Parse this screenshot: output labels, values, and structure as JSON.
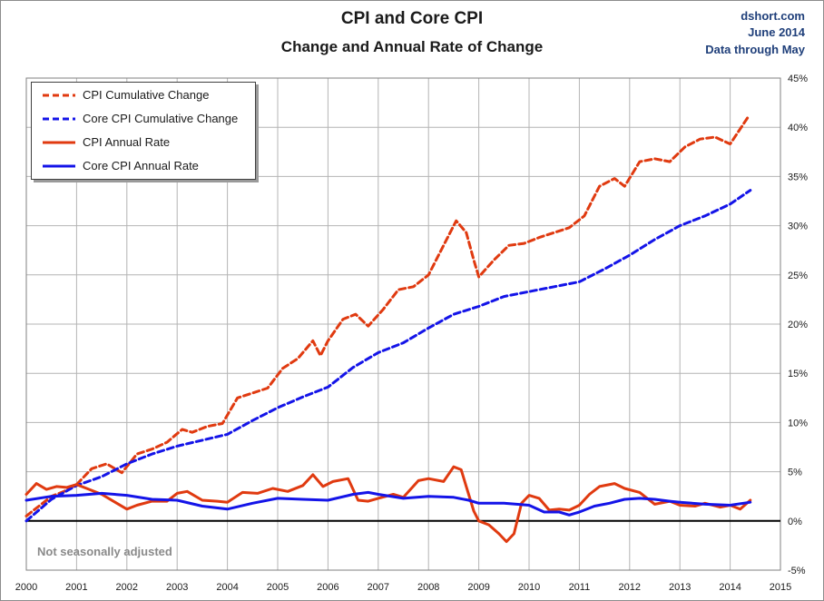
{
  "header": {
    "title": "CPI and Core CPI",
    "subtitle": "Change and Annual Rate of Change",
    "source": "dshort.com",
    "date": "June 2014",
    "data_through": "Data through May"
  },
  "note": "Not seasonally adjusted",
  "colors": {
    "cpi": "#e03a10",
    "core": "#1414e8",
    "grid": "#b4b4b4",
    "zero": "#000000"
  },
  "chart_data": {
    "type": "line",
    "title": "CPI and Core CPI",
    "subtitle": "Change and Annual Rate of Change",
    "xlabel": "",
    "ylabel": "",
    "xlim": [
      2000,
      2015
    ],
    "ylim": [
      -5,
      45
    ],
    "x_ticks": [
      "2000",
      "2001",
      "2002",
      "2003",
      "2004",
      "2005",
      "2006",
      "2007",
      "2008",
      "2009",
      "2010",
      "2011",
      "2012",
      "2013",
      "2014",
      "2015"
    ],
    "y_ticks": [
      "-5%",
      "0%",
      "5%",
      "10%",
      "15%",
      "20%",
      "25%",
      "30%",
      "35%",
      "40%",
      "45%"
    ],
    "y_tick_values": [
      -5,
      0,
      5,
      10,
      15,
      20,
      25,
      30,
      35,
      40,
      45
    ],
    "grid": true,
    "legend_position": "top-left",
    "series": [
      {
        "name": "CPI Cumulative Change",
        "style": "dashed",
        "x": [
          2000.0,
          2000.25,
          2000.5,
          2000.75,
          2001.0,
          2001.3,
          2001.6,
          2001.9,
          2002.2,
          2002.5,
          2002.8,
          2003.1,
          2003.3,
          2003.6,
          2003.9,
          2004.2,
          2004.5,
          2004.8,
          2005.1,
          2005.4,
          2005.7,
          2005.85,
          2006.0,
          2006.3,
          2006.55,
          2006.8,
          2007.1,
          2007.4,
          2007.7,
          2008.0,
          2008.3,
          2008.55,
          2008.75,
          2008.9,
          2009.0,
          2009.3,
          2009.6,
          2009.9,
          2010.2,
          2010.5,
          2010.8,
          2011.1,
          2011.4,
          2011.7,
          2011.9,
          2012.2,
          2012.5,
          2012.8,
          2013.1,
          2013.4,
          2013.7,
          2014.0,
          2014.35
        ],
        "values": [
          0.5,
          1.5,
          2.5,
          3.0,
          3.7,
          5.3,
          5.8,
          4.9,
          6.8,
          7.3,
          8.0,
          9.3,
          9.0,
          9.6,
          9.9,
          12.5,
          13.0,
          13.5,
          15.5,
          16.5,
          18.3,
          16.8,
          18.3,
          20.5,
          21.0,
          19.8,
          21.5,
          23.5,
          23.8,
          25.0,
          28.0,
          30.5,
          29.3,
          26.5,
          24.8,
          26.5,
          28.0,
          28.2,
          28.8,
          29.3,
          29.8,
          31.0,
          34.0,
          34.8,
          34.0,
          36.5,
          36.8,
          36.5,
          38.0,
          38.8,
          39.0,
          38.3,
          41.0
        ]
      },
      {
        "name": "Core CPI Cumulative Change",
        "style": "dashed",
        "x": [
          2000.0,
          2000.5,
          2001.0,
          2001.5,
          2002.0,
          2002.5,
          2003.0,
          2003.5,
          2004.0,
          2004.5,
          2005.0,
          2005.5,
          2006.0,
          2006.5,
          2007.0,
          2007.5,
          2008.0,
          2008.5,
          2009.0,
          2009.5,
          2010.0,
          2010.5,
          2011.0,
          2011.5,
          2012.0,
          2012.5,
          2013.0,
          2013.5,
          2014.0,
          2014.4
        ],
        "values": [
          0.0,
          2.2,
          3.6,
          4.5,
          5.8,
          6.8,
          7.6,
          8.2,
          8.8,
          10.2,
          11.5,
          12.6,
          13.6,
          15.6,
          17.1,
          18.1,
          19.6,
          21.0,
          21.8,
          22.8,
          23.3,
          23.8,
          24.3,
          25.6,
          27.0,
          28.6,
          30.0,
          31.0,
          32.2,
          33.6
        ]
      },
      {
        "name": "CPI Annual Rate",
        "style": "solid",
        "x": [
          2000.0,
          2000.2,
          2000.4,
          2000.6,
          2000.8,
          2001.0,
          2001.2,
          2001.5,
          2001.8,
          2002.0,
          2002.2,
          2002.5,
          2002.8,
          2003.0,
          2003.2,
          2003.5,
          2003.8,
          2004.0,
          2004.3,
          2004.6,
          2004.9,
          2005.2,
          2005.5,
          2005.7,
          2005.9,
          2006.1,
          2006.4,
          2006.6,
          2006.8,
          2007.0,
          2007.3,
          2007.5,
          2007.8,
          2008.0,
          2008.3,
          2008.5,
          2008.65,
          2008.75,
          2008.9,
          2009.0,
          2009.2,
          2009.4,
          2009.55,
          2009.7,
          2009.85,
          2010.0,
          2010.2,
          2010.4,
          2010.6,
          2010.8,
          2011.0,
          2011.2,
          2011.4,
          2011.7,
          2011.9,
          2012.2,
          2012.5,
          2012.8,
          2013.0,
          2013.3,
          2013.5,
          2013.8,
          2014.0,
          2014.2,
          2014.4
        ],
        "values": [
          2.7,
          3.8,
          3.2,
          3.5,
          3.4,
          3.7,
          3.3,
          2.7,
          1.8,
          1.2,
          1.6,
          2.0,
          2.0,
          2.8,
          3.0,
          2.1,
          2.0,
          1.9,
          2.9,
          2.8,
          3.3,
          3.0,
          3.6,
          4.7,
          3.5,
          4.0,
          4.3,
          2.1,
          2.0,
          2.3,
          2.7,
          2.4,
          4.1,
          4.3,
          4.0,
          5.5,
          5.2,
          3.5,
          1.0,
          0.0,
          -0.4,
          -1.3,
          -2.1,
          -1.3,
          1.8,
          2.6,
          2.3,
          1.1,
          1.2,
          1.1,
          1.6,
          2.7,
          3.5,
          3.8,
          3.3,
          2.9,
          1.7,
          2.0,
          1.6,
          1.5,
          1.8,
          1.4,
          1.6,
          1.2,
          2.1
        ]
      },
      {
        "name": "Core CPI Annual Rate",
        "style": "solid",
        "x": [
          2000.0,
          2000.5,
          2001.0,
          2001.5,
          2002.0,
          2002.5,
          2003.0,
          2003.5,
          2004.0,
          2004.5,
          2005.0,
          2005.5,
          2006.0,
          2006.5,
          2006.8,
          2007.0,
          2007.5,
          2008.0,
          2008.5,
          2008.8,
          2009.0,
          2009.5,
          2010.0,
          2010.3,
          2010.6,
          2010.8,
          2011.0,
          2011.3,
          2011.6,
          2011.9,
          2012.2,
          2012.5,
          2012.8,
          2013.0,
          2013.5,
          2014.0,
          2014.4
        ],
        "values": [
          2.1,
          2.5,
          2.6,
          2.8,
          2.6,
          2.2,
          2.1,
          1.5,
          1.2,
          1.8,
          2.3,
          2.2,
          2.1,
          2.7,
          2.9,
          2.7,
          2.3,
          2.5,
          2.4,
          2.1,
          1.8,
          1.8,
          1.6,
          0.9,
          0.9,
          0.6,
          0.9,
          1.5,
          1.8,
          2.2,
          2.3,
          2.2,
          2.0,
          1.9,
          1.7,
          1.6,
          1.9
        ]
      }
    ]
  }
}
